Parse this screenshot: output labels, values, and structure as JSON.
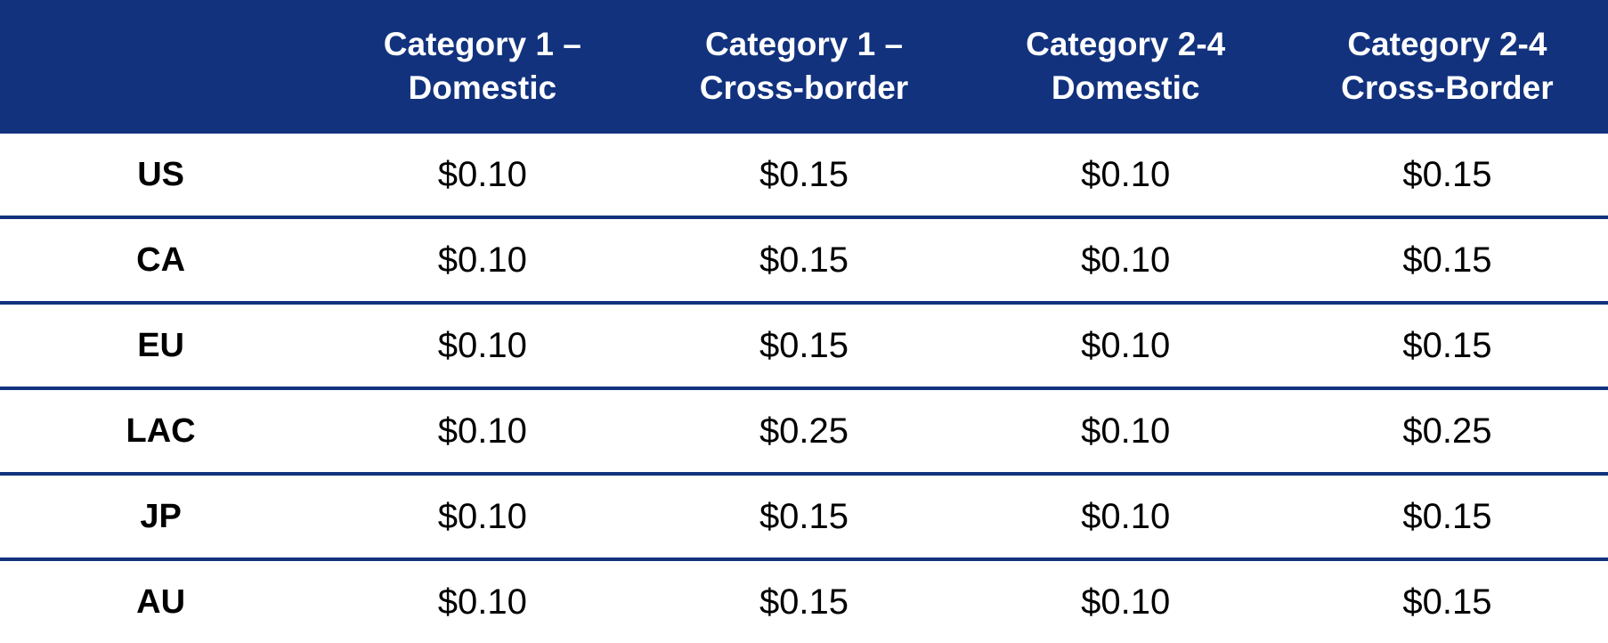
{
  "chart_data": {
    "type": "table",
    "columns": [
      "",
      "Category 1 – Domestic",
      "Category 1 – Cross-border",
      "Category 2-4 Domestic",
      "Category 2-4 Cross-Border"
    ],
    "rows": [
      [
        "US",
        "$0.10",
        "$0.15",
        "$0.10",
        "$0.15"
      ],
      [
        "CA",
        "$0.10",
        "$0.15",
        "$0.10",
        "$0.15"
      ],
      [
        "EU",
        "$0.10",
        "$0.15",
        "$0.10",
        "$0.15"
      ],
      [
        "LAC",
        "$0.10",
        "$0.25",
        "$0.10",
        "$0.25"
      ],
      [
        "JP",
        "$0.10",
        "$0.15",
        "$0.10",
        "$0.15"
      ],
      [
        "AU",
        "$0.10",
        "$0.15",
        "$0.10",
        "$0.15"
      ]
    ],
    "legend_position": "none",
    "grid": "horizontal-separators-only"
  },
  "table": {
    "corner_label": "",
    "headers": [
      "Category 1 –\nDomestic",
      "Category 1 –\nCross-border",
      "Category 2-4\nDomestic",
      "Category 2-4\nCross-Border"
    ],
    "rows": [
      {
        "label": "US",
        "values": [
          "$0.10",
          "$0.15",
          "$0.10",
          "$0.15"
        ]
      },
      {
        "label": "CA",
        "values": [
          "$0.10",
          "$0.15",
          "$0.10",
          "$0.15"
        ]
      },
      {
        "label": "EU",
        "values": [
          "$0.10",
          "$0.15",
          "$0.10",
          "$0.15"
        ]
      },
      {
        "label": "LAC",
        "values": [
          "$0.10",
          "$0.25",
          "$0.10",
          "$0.25"
        ]
      },
      {
        "label": "JP",
        "values": [
          "$0.10",
          "$0.15",
          "$0.10",
          "$0.15"
        ]
      },
      {
        "label": "AU",
        "values": [
          "$0.10",
          "$0.15",
          "$0.10",
          "$0.15"
        ]
      }
    ],
    "colors": {
      "header_background": "#12327E",
      "header_text": "#FFFFFF",
      "separator_line": "#12327E",
      "body_text": "#000000",
      "row_background": "#FFFFFF"
    }
  }
}
